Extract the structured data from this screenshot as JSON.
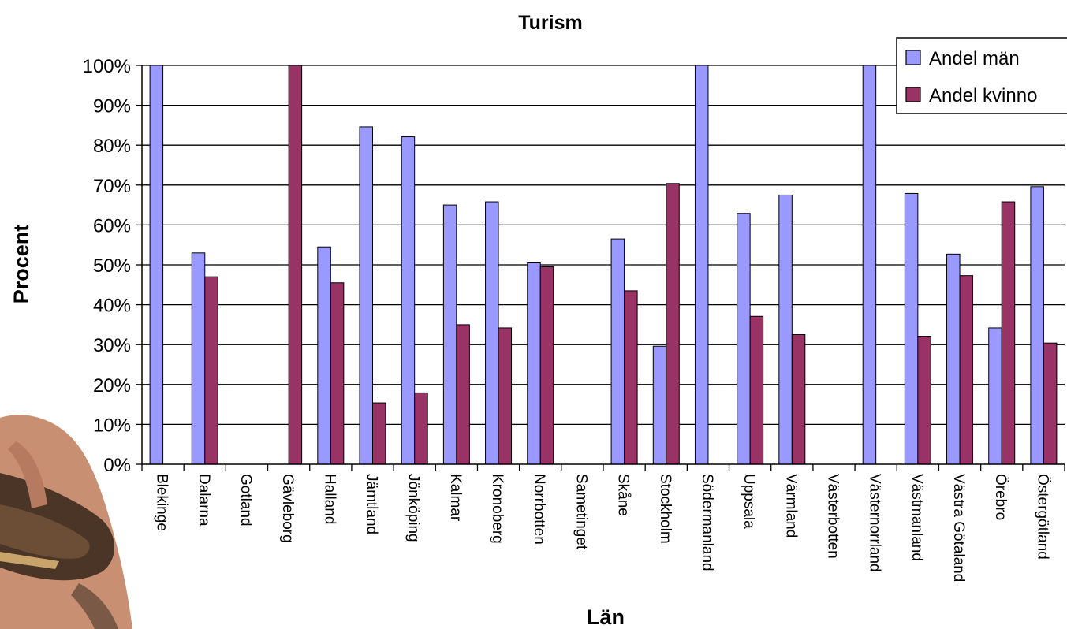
{
  "chart_data": {
    "type": "bar",
    "title": "Turism",
    "xlabel": "Län",
    "ylabel": "Procent",
    "ylim": [
      0,
      100
    ],
    "yticks": [
      "0%",
      "10%",
      "20%",
      "30%",
      "40%",
      "50%",
      "60%",
      "70%",
      "80%",
      "90%",
      "100%"
    ],
    "grid": true,
    "legend_position": "top-right",
    "categories": [
      "Blekinge",
      "Dalarna",
      "Gotland",
      "Gävleborg",
      "Halland",
      "Jämtland",
      "Jönköping",
      "Kalmar",
      "Kronoberg",
      "Norrbotten",
      "Sametinget",
      "Skåne",
      "Stockholm",
      "Södermanland",
      "Uppsala",
      "Värmland",
      "Västerbotten",
      "Västernorrland",
      "Västmanland",
      "Västra Götaland",
      "Örebro",
      "Östergötland"
    ],
    "series": [
      {
        "name": "Andel män",
        "color": "#9999ff",
        "values": [
          100,
          53,
          0,
          0,
          54.5,
          84.6,
          82.1,
          65,
          65.8,
          50.5,
          0,
          56.5,
          29.6,
          100,
          62.9,
          67.5,
          0,
          100,
          67.9,
          52.7,
          34.2,
          69.6
        ]
      },
      {
        "name": "Andel kvinnor",
        "color": "#993366",
        "values": [
          0,
          47,
          0,
          100,
          45.5,
          15.4,
          17.9,
          35,
          34.2,
          49.5,
          0,
          43.5,
          70.4,
          0,
          37.1,
          32.5,
          0,
          0,
          32.1,
          47.3,
          65.8,
          30.4
        ]
      }
    ]
  },
  "legend": {
    "labels": [
      "Andel män",
      "Andel kvinno"
    ]
  }
}
